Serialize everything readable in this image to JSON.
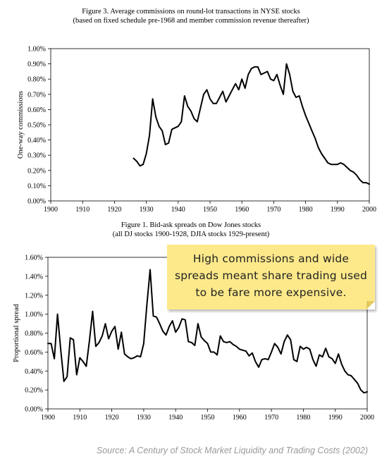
{
  "chart_data": [
    {
      "type": "line",
      "title": "Figure 3.  Average commissions on round-lot transactions in NYSE stocks",
      "subtitle": "(based on fixed schedule pre-1968 and member commission revenue thereafter)",
      "xlabel": "",
      "ylabel": "One-way commissions",
      "xlim": [
        1900,
        2000
      ],
      "ylim": [
        0,
        0.01
      ],
      "x_ticks": [
        "1900",
        "1910",
        "1920",
        "1930",
        "1940",
        "1950",
        "1960",
        "1970",
        "1980",
        "1990",
        "2000"
      ],
      "y_ticks": [
        "0.00%",
        "0.10%",
        "0.20%",
        "0.30%",
        "0.40%",
        "0.50%",
        "0.60%",
        "0.70%",
        "0.80%",
        "0.90%",
        "1.00%"
      ],
      "grid": false,
      "series": [
        {
          "x": [
            1926,
            1927,
            1928,
            1929,
            1930,
            1931,
            1932,
            1933,
            1934,
            1935,
            1936,
            1937,
            1938,
            1939,
            1940,
            1941,
            1942,
            1943,
            1944,
            1945,
            1946,
            1947,
            1948,
            1949,
            1950,
            1951,
            1952,
            1953,
            1954,
            1955,
            1956,
            1957,
            1958,
            1959,
            1960,
            1961,
            1962,
            1963,
            1964,
            1965,
            1966,
            1967,
            1968,
            1969,
            1970,
            1971,
            1972,
            1973,
            1974,
            1975,
            1976,
            1977,
            1978,
            1979,
            1980,
            1981,
            1982,
            1983,
            1984,
            1985,
            1986,
            1987,
            1988,
            1989,
            1990,
            1991,
            1992,
            1993,
            1994,
            1995,
            1996,
            1997,
            1998,
            1999,
            2000
          ],
          "y": [
            0.0028,
            0.0026,
            0.0023,
            0.0024,
            0.0031,
            0.0043,
            0.0067,
            0.0055,
            0.0049,
            0.0046,
            0.0037,
            0.0038,
            0.0047,
            0.0048,
            0.0049,
            0.0052,
            0.0069,
            0.0062,
            0.0059,
            0.0054,
            0.0052,
            0.0061,
            0.007,
            0.0073,
            0.0067,
            0.0064,
            0.0064,
            0.0068,
            0.0072,
            0.0065,
            0.0069,
            0.0073,
            0.0077,
            0.0073,
            0.008,
            0.0074,
            0.0083,
            0.0087,
            0.0088,
            0.0088,
            0.0083,
            0.0084,
            0.0085,
            0.008,
            0.0079,
            0.0083,
            0.0076,
            0.007,
            0.009,
            0.0083,
            0.0072,
            0.0068,
            0.0069,
            0.0062,
            0.0056,
            0.0051,
            0.0046,
            0.0041,
            0.0035,
            0.0031,
            0.0028,
            0.0025,
            0.0024,
            0.0024,
            0.0024,
            0.0025,
            0.0024,
            0.0022,
            0.002,
            0.0019,
            0.0017,
            0.0014,
            0.0012,
            0.0012,
            0.0011
          ]
        }
      ]
    },
    {
      "type": "line",
      "title": "Figure 1.  Bid-ask spreads on Dow Jones stocks",
      "subtitle": "(all DJ stocks 1900-1928, DJIA stocks 1929-present)",
      "xlabel": "",
      "ylabel": "Proportional spread",
      "xlim": [
        1900,
        2000
      ],
      "ylim": [
        0,
        0.016
      ],
      "x_ticks": [
        "1900",
        "1910",
        "1920",
        "1930",
        "1940",
        "1950",
        "1960",
        "1970",
        "1980",
        "1990",
        "2000"
      ],
      "y_ticks": [
        "0.00%",
        "0.20%",
        "0.40%",
        "0.60%",
        "0.80%",
        "1.00%",
        "1.20%",
        "1.40%",
        "1.60%"
      ],
      "grid": false,
      "series": [
        {
          "x": [
            1900,
            1901,
            1902,
            1903,
            1904,
            1905,
            1906,
            1907,
            1908,
            1909,
            1910,
            1911,
            1912,
            1913,
            1914,
            1915,
            1916,
            1917,
            1918,
            1919,
            1920,
            1921,
            1922,
            1923,
            1924,
            1925,
            1926,
            1927,
            1928,
            1929,
            1930,
            1931,
            1932,
            1933,
            1934,
            1935,
            1936,
            1937,
            1938,
            1939,
            1940,
            1941,
            1942,
            1943,
            1944,
            1945,
            1946,
            1947,
            1948,
            1949,
            1950,
            1951,
            1952,
            1953,
            1954,
            1955,
            1956,
            1957,
            1958,
            1959,
            1960,
            1961,
            1962,
            1963,
            1964,
            1965,
            1966,
            1967,
            1968,
            1969,
            1970,
            1971,
            1972,
            1973,
            1974,
            1975,
            1976,
            1977,
            1978,
            1979,
            1980,
            1981,
            1982,
            1983,
            1984,
            1985,
            1986,
            1987,
            1988,
            1989,
            1990,
            1991,
            1992,
            1993,
            1994,
            1995,
            1996,
            1997,
            1998,
            1999,
            2000
          ],
          "y": [
            0.0069,
            0.0069,
            0.0053,
            0.01,
            0.0063,
            0.0029,
            0.0034,
            0.0075,
            0.0073,
            0.0036,
            0.0054,
            0.005,
            0.0045,
            0.0072,
            0.0103,
            0.0066,
            0.007,
            0.0077,
            0.009,
            0.0074,
            0.0082,
            0.0087,
            0.0063,
            0.0081,
            0.0058,
            0.0055,
            0.0053,
            0.0054,
            0.0056,
            0.0055,
            0.0069,
            0.011,
            0.0147,
            0.0098,
            0.0097,
            0.009,
            0.0082,
            0.0078,
            0.0087,
            0.0093,
            0.0081,
            0.0086,
            0.0095,
            0.0094,
            0.0071,
            0.007,
            0.0067,
            0.009,
            0.0076,
            0.0072,
            0.0069,
            0.006,
            0.006,
            0.0057,
            0.0077,
            0.0071,
            0.007,
            0.0071,
            0.0068,
            0.0066,
            0.0063,
            0.0062,
            0.0061,
            0.0056,
            0.0059,
            0.005,
            0.0044,
            0.0052,
            0.0053,
            0.0052,
            0.006,
            0.0069,
            0.0065,
            0.0058,
            0.0071,
            0.0078,
            0.0073,
            0.0052,
            0.005,
            0.0066,
            0.0063,
            0.0065,
            0.0063,
            0.0052,
            0.0045,
            0.0057,
            0.0055,
            0.0064,
            0.0055,
            0.0053,
            0.0048,
            0.0058,
            0.0047,
            0.004,
            0.0036,
            0.0035,
            0.0031,
            0.0027,
            0.002,
            0.0017,
            0.0018
          ]
        }
      ]
    }
  ],
  "callout": {
    "text": "High commissions and wide spreads meant share trading used to be fare more expensive."
  },
  "source": "Source:  A Century of Stock Market Liquidity and Trading Costs (2002)"
}
